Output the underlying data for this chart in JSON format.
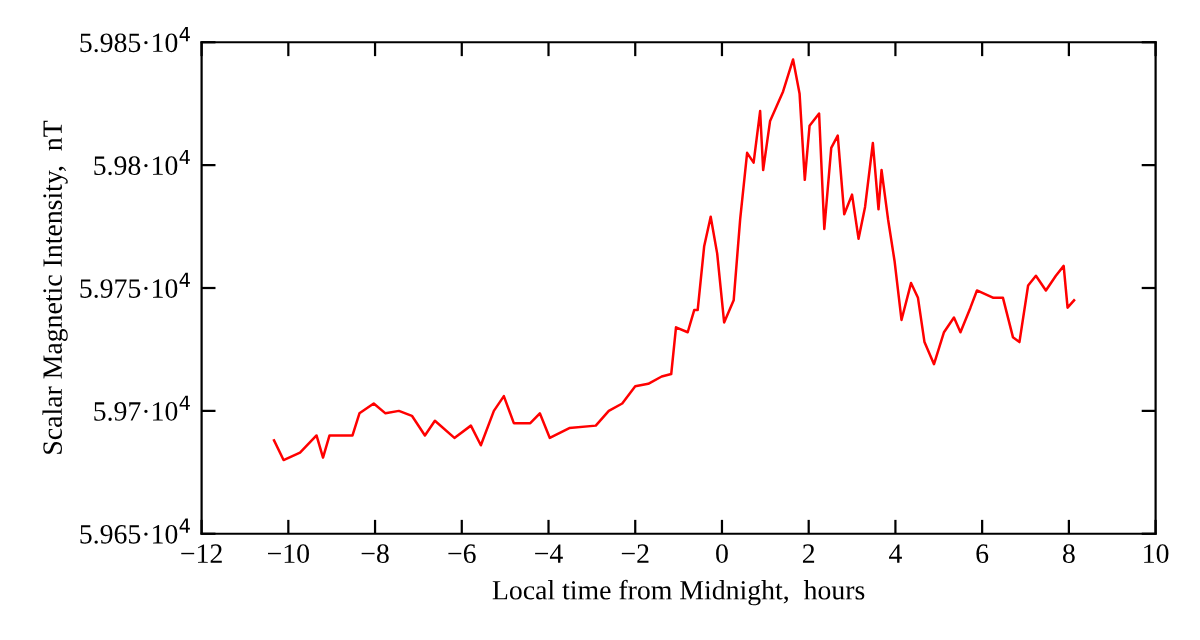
{
  "chart_data": {
    "type": "line",
    "xlabel": "Local time from Midnight,  hours",
    "ylabel": "Scalar Magnetic Intensity,  nT",
    "xlim": [
      -12,
      10
    ],
    "ylim": [
      59650,
      59850
    ],
    "xticks": [
      {
        "value": -12,
        "label": "−12"
      },
      {
        "value": -10,
        "label": "−10"
      },
      {
        "value": -8,
        "label": "−8"
      },
      {
        "value": -6,
        "label": "−6"
      },
      {
        "value": -4,
        "label": "−4"
      },
      {
        "value": -2,
        "label": "−2"
      },
      0,
      2,
      4,
      6,
      8,
      10
    ],
    "yticks": [
      {
        "value": 59650,
        "label": "5.965·10$^{4}$"
      },
      {
        "value": 59700,
        "label": "5.97·10$^{4}$"
      },
      {
        "value": 59750,
        "label": "5.975·10$^{4}$"
      },
      {
        "value": 59800,
        "label": "5.98·10$^{4}$"
      },
      {
        "value": 59850,
        "label": "5.985·10$^{4}$"
      }
    ],
    "grid": false,
    "marker": "none",
    "line_style": "solid",
    "series": [
      {
        "color": "#ff0000",
        "x": [
          -10.33,
          -10.11,
          -9.73,
          -9.35,
          -9.2,
          -9.05,
          -8.52,
          -8.36,
          -8.03,
          -7.76,
          -7.45,
          -7.15,
          -6.85,
          -6.62,
          -6.17,
          -5.79,
          -5.56,
          -5.26,
          -5.03,
          -4.8,
          -4.42,
          -4.2,
          -3.97,
          -3.52,
          -2.91,
          -2.61,
          -2.3,
          -2.0,
          -1.7,
          -1.39,
          -1.17,
          -1.06,
          -0.79,
          -0.64,
          -0.56,
          -0.41,
          -0.26,
          -0.11,
          0.05,
          0.27,
          0.42,
          0.58,
          0.73,
          0.88,
          0.95,
          1.11,
          1.26,
          1.41,
          1.64,
          1.79,
          1.91,
          2.02,
          2.24,
          2.36,
          2.52,
          2.67,
          2.82,
          3.0,
          3.15,
          3.3,
          3.48,
          3.61,
          3.68,
          3.83,
          3.98,
          4.14,
          4.36,
          4.52,
          4.67,
          4.89,
          5.12,
          5.35,
          5.5,
          5.73,
          5.88,
          6.26,
          6.48,
          6.71,
          6.86,
          7.06,
          7.24,
          7.47,
          7.7,
          7.88,
          7.97,
          8.12
        ],
        "values": [
          59688,
          59680,
          59683,
          59690,
          59681,
          59690,
          59690,
          59699,
          59703,
          59699,
          59700,
          59698,
          59690,
          59696,
          59689,
          59694,
          59686,
          59700,
          59706,
          59695,
          59695,
          59699,
          59689,
          59693,
          59694,
          59700,
          59703,
          59710,
          59711,
          59714,
          59715,
          59734,
          59732,
          59741,
          59741,
          59767,
          59779,
          59764,
          59736,
          59745,
          59778,
          59805,
          59801,
          59822,
          59798,
          59818,
          59824,
          59830,
          59843,
          59829,
          59794,
          59816,
          59821,
          59774,
          59807,
          59812,
          59780,
          59788,
          59770,
          59783,
          59809,
          59782,
          59798,
          59778,
          59761,
          59737,
          59752,
          59746,
          59728,
          59719,
          59732,
          59738,
          59732,
          59742,
          59749,
          59746,
          59746,
          59730,
          59728,
          59751,
          59755,
          59749,
          59755,
          59759,
          59742,
          59745
        ]
      }
    ]
  }
}
